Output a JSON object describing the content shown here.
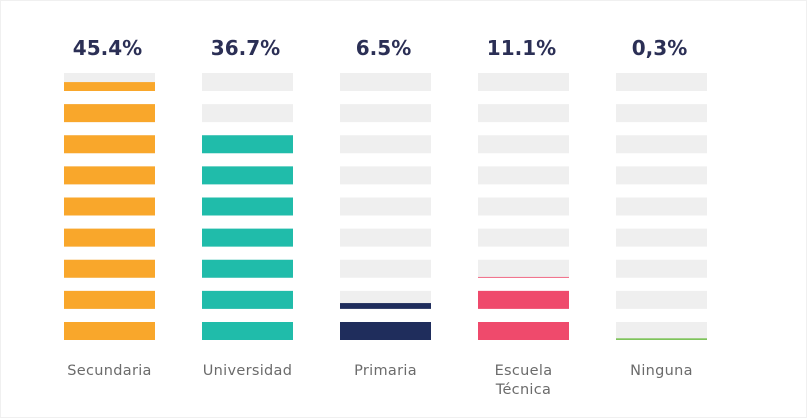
{
  "chart_data": {
    "type": "pictogram_bar",
    "categories": [
      "Secundaria",
      "Universidad",
      "Primaria",
      "Escuela Técnica",
      "Ninguna"
    ],
    "values": [
      45.4,
      36.7,
      6.5,
      11.1,
      0.3
    ],
    "value_labels": [
      "45.4%",
      "36.7%",
      "6.5%",
      "11.1%",
      "0,3%"
    ],
    "colors": [
      "#f9a72b",
      "#20bcaa",
      "#1f2d5c",
      "#ef4a6c",
      "#7ec35b"
    ],
    "ylim": [
      0,
      47
    ]
  }
}
